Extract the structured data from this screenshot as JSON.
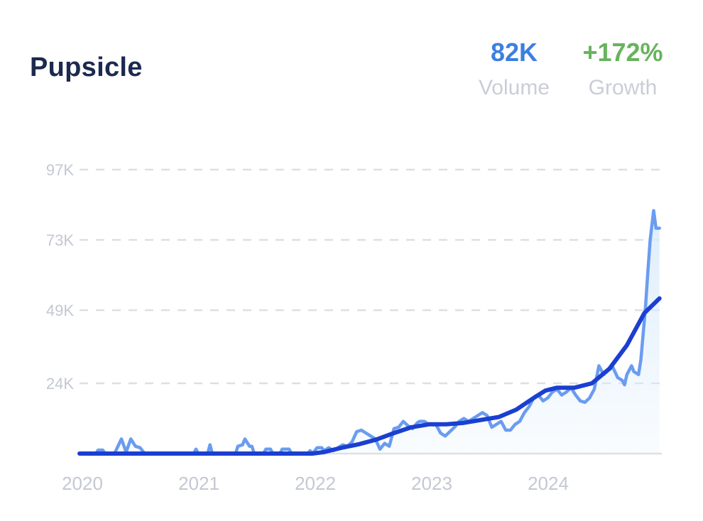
{
  "header": {
    "title": "Pupsicle",
    "volume": {
      "value": "82K",
      "label": "Volume"
    },
    "growth": {
      "value": "+172%",
      "label": "Growth"
    }
  },
  "colors": {
    "raw_line": "#6a9cf0",
    "trend_line": "#1a3fd1",
    "area_fill": "#dcedfb",
    "grid": "#dddfe5",
    "volume_value": "#3d7fe0",
    "growth_value": "#68b35e"
  },
  "chart_data": {
    "type": "line",
    "title": "Pupsicle",
    "xlabel": "",
    "ylabel": "",
    "x_range": [
      2020.0,
      2025.0
    ],
    "ylim": [
      0,
      97000
    ],
    "grid": true,
    "y_ticks": [
      {
        "label": "97K",
        "value": 97000
      },
      {
        "label": "73K",
        "value": 73000
      },
      {
        "label": "49K",
        "value": 49000
      },
      {
        "label": "24K",
        "value": 24000
      }
    ],
    "x_ticks": [
      {
        "label": "2020",
        "value": 2020.0
      },
      {
        "label": "2021",
        "value": 2021.0
      },
      {
        "label": "2022",
        "value": 2022.0
      },
      {
        "label": "2023",
        "value": 2023.0
      },
      {
        "label": "2024",
        "value": 2024.0
      }
    ],
    "series": [
      {
        "style": "raw",
        "points": [
          [
            2020.0,
            0
          ],
          [
            2020.14,
            0
          ],
          [
            2020.16,
            1200
          ],
          [
            2020.2,
            1200
          ],
          [
            2020.22,
            0
          ],
          [
            2020.3,
            0
          ],
          [
            2020.36,
            5000
          ],
          [
            2020.4,
            500
          ],
          [
            2020.44,
            5000
          ],
          [
            2020.48,
            2500
          ],
          [
            2020.52,
            2000
          ],
          [
            2020.56,
            0
          ],
          [
            2020.98,
            0
          ],
          [
            2021.0,
            1500
          ],
          [
            2021.02,
            0
          ],
          [
            2021.1,
            0
          ],
          [
            2021.12,
            3000
          ],
          [
            2021.14,
            0
          ],
          [
            2021.34,
            0
          ],
          [
            2021.36,
            2500
          ],
          [
            2021.4,
            3000
          ],
          [
            2021.42,
            5000
          ],
          [
            2021.46,
            2500
          ],
          [
            2021.48,
            2500
          ],
          [
            2021.5,
            0
          ],
          [
            2021.58,
            0
          ],
          [
            2021.6,
            1500
          ],
          [
            2021.64,
            1500
          ],
          [
            2021.66,
            0
          ],
          [
            2021.72,
            0
          ],
          [
            2021.74,
            1500
          ],
          [
            2021.8,
            1500
          ],
          [
            2021.82,
            0
          ],
          [
            2021.96,
            0
          ],
          [
            2021.98,
            1000
          ],
          [
            2022.0,
            0
          ],
          [
            2022.04,
            2000
          ],
          [
            2022.08,
            2000
          ],
          [
            2022.1,
            1000
          ],
          [
            2022.14,
            2000
          ],
          [
            2022.18,
            1000
          ],
          [
            2022.22,
            2000
          ],
          [
            2022.26,
            3000
          ],
          [
            2022.3,
            2500
          ],
          [
            2022.34,
            4000
          ],
          [
            2022.38,
            7500
          ],
          [
            2022.42,
            8000
          ],
          [
            2022.46,
            7000
          ],
          [
            2022.5,
            6000
          ],
          [
            2022.54,
            5000
          ],
          [
            2022.58,
            1500
          ],
          [
            2022.62,
            3500
          ],
          [
            2022.66,
            2500
          ],
          [
            2022.7,
            8500
          ],
          [
            2022.74,
            9000
          ],
          [
            2022.78,
            11000
          ],
          [
            2022.82,
            9500
          ],
          [
            2022.86,
            8500
          ],
          [
            2022.9,
            10500
          ],
          [
            2022.92,
            11000
          ],
          [
            2022.96,
            11000
          ],
          [
            2023.0,
            10000
          ],
          [
            2023.06,
            10000
          ],
          [
            2023.1,
            7000
          ],
          [
            2023.14,
            6000
          ],
          [
            2023.18,
            7500
          ],
          [
            2023.22,
            9000
          ],
          [
            2023.26,
            11000
          ],
          [
            2023.3,
            12000
          ],
          [
            2023.34,
            11000
          ],
          [
            2023.38,
            12000
          ],
          [
            2023.42,
            13000
          ],
          [
            2023.46,
            14000
          ],
          [
            2023.5,
            13000
          ],
          [
            2023.54,
            9000
          ],
          [
            2023.58,
            10000
          ],
          [
            2023.62,
            11000
          ],
          [
            2023.66,
            8000
          ],
          [
            2023.7,
            8000
          ],
          [
            2023.74,
            10000
          ],
          [
            2023.78,
            11000
          ],
          [
            2023.82,
            14000
          ],
          [
            2023.86,
            16000
          ],
          [
            2023.9,
            19000
          ],
          [
            2023.94,
            20000
          ],
          [
            2023.98,
            18000
          ],
          [
            2024.02,
            19000
          ],
          [
            2024.06,
            21000
          ],
          [
            2024.1,
            22000
          ],
          [
            2024.14,
            20000
          ],
          [
            2024.18,
            21000
          ],
          [
            2024.22,
            22500
          ],
          [
            2024.26,
            20000
          ],
          [
            2024.3,
            18000
          ],
          [
            2024.34,
            17500
          ],
          [
            2024.38,
            19000
          ],
          [
            2024.42,
            22000
          ],
          [
            2024.46,
            30000
          ],
          [
            2024.5,
            27000
          ],
          [
            2024.54,
            28500
          ],
          [
            2024.58,
            29500
          ],
          [
            2024.62,
            26000
          ],
          [
            2024.66,
            25000
          ],
          [
            2024.68,
            23500
          ],
          [
            2024.7,
            27000
          ],
          [
            2024.74,
            30000
          ],
          [
            2024.76,
            28000
          ],
          [
            2024.8,
            27000
          ],
          [
            2024.82,
            32000
          ],
          [
            2024.86,
            50000
          ],
          [
            2024.88,
            62000
          ],
          [
            2024.9,
            73000
          ],
          [
            2024.93,
            83000
          ],
          [
            2024.95,
            77000
          ],
          [
            2024.98,
            77000
          ]
        ]
      },
      {
        "style": "trend",
        "points": [
          [
            2020.0,
            0
          ],
          [
            2022.0,
            0
          ],
          [
            2022.1,
            500
          ],
          [
            2022.25,
            2000
          ],
          [
            2022.4,
            3200
          ],
          [
            2022.55,
            4800
          ],
          [
            2022.7,
            7000
          ],
          [
            2022.85,
            9000
          ],
          [
            2023.0,
            10000
          ],
          [
            2023.15,
            10000
          ],
          [
            2023.3,
            10500
          ],
          [
            2023.45,
            11500
          ],
          [
            2023.6,
            12500
          ],
          [
            2023.75,
            15000
          ],
          [
            2023.9,
            19000
          ],
          [
            2024.0,
            21500
          ],
          [
            2024.1,
            22500
          ],
          [
            2024.25,
            22500
          ],
          [
            2024.4,
            24000
          ],
          [
            2024.55,
            29000
          ],
          [
            2024.7,
            37000
          ],
          [
            2024.85,
            48000
          ],
          [
            2024.98,
            53000
          ]
        ]
      }
    ]
  }
}
